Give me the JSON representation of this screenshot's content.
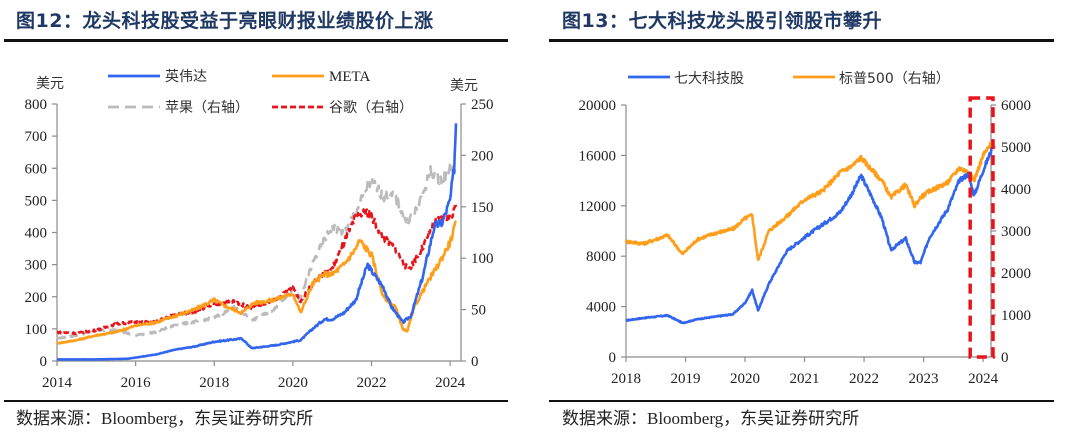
{
  "page": {
    "source_label": "数据来源：Bloomberg，东吴证券研究所"
  },
  "chart_data": [
    {
      "type": "line",
      "title": "图12：龙头科技股受益于亮眼财报业绩股价上涨",
      "source": "数据来源：Bloomberg，东吴证券研究所",
      "y_left_unit": "美元",
      "y_right_unit": "美元",
      "ylim_left": [
        0,
        800
      ],
      "ylim_right": [
        0,
        250
      ],
      "yticks_left": [
        "0",
        "100",
        "200",
        "300",
        "400",
        "500",
        "600",
        "700",
        "800"
      ],
      "yticks_right": [
        "0",
        "50",
        "100",
        "150",
        "200",
        "250"
      ],
      "xlim": [
        2014,
        2024.2
      ],
      "xticks": [
        "2014",
        "2016",
        "2018",
        "2020",
        "2022",
        "2024"
      ],
      "grid": false,
      "legend_position": "top",
      "legend": [
        "英伟达",
        "META",
        "苹果（右轴）",
        "谷歌（右轴）"
      ],
      "series": [
        {
          "name": "英伟达",
          "axis": "left",
          "color": "#3366ee",
          "dash": "solid",
          "x": [
            2014,
            2015,
            2015.8,
            2016.5,
            2017,
            2017.5,
            2018,
            2018.7,
            2018.95,
            2019.3,
            2019.6,
            2020,
            2020.2,
            2020.5,
            2020.8,
            2021,
            2021.3,
            2021.6,
            2021.9,
            2022.0,
            2022.3,
            2022.5,
            2022.8,
            2023.0,
            2023.3,
            2023.6,
            2023.8,
            2024.0,
            2024.1,
            2024.15
          ],
          "y": [
            5,
            5,
            7,
            20,
            35,
            45,
            60,
            70,
            40,
            45,
            50,
            60,
            65,
            100,
            130,
            130,
            150,
            190,
            300,
            280,
            230,
            170,
            120,
            140,
            260,
            420,
            430,
            500,
            600,
            740
          ]
        },
        {
          "name": "META",
          "axis": "left",
          "color": "#ff9e1b",
          "dash": "solid",
          "x": [
            2014,
            2014.5,
            2015,
            2015.5,
            2016,
            2016.5,
            2017,
            2017.5,
            2018,
            2018.3,
            2018.7,
            2019,
            2019.5,
            2020,
            2020.2,
            2020.5,
            2020.8,
            2021,
            2021.3,
            2021.6,
            2021.7,
            2022.0,
            2022.3,
            2022.6,
            2022.8,
            2022.9,
            2023.1,
            2023.4,
            2023.7,
            2024.0,
            2024.15
          ],
          "y": [
            55,
            65,
            80,
            90,
            110,
            120,
            140,
            160,
            190,
            170,
            150,
            180,
            190,
            210,
            150,
            240,
            270,
            270,
            300,
            350,
            375,
            330,
            200,
            170,
            100,
            90,
            170,
            240,
            300,
            370,
            430
          ]
        },
        {
          "name": "苹果（右轴）",
          "axis": "right",
          "color": "#bbbbbb",
          "dash": "dashed",
          "x": [
            2014,
            2014.5,
            2015,
            2015.5,
            2016,
            2016.5,
            2017,
            2017.5,
            2018,
            2018.5,
            2019,
            2019.5,
            2020,
            2020.2,
            2020.5,
            2020.8,
            2021,
            2021.3,
            2021.6,
            2021.9,
            2022.0,
            2022.3,
            2022.6,
            2022.9,
            2023.2,
            2023.5,
            2023.8,
            2024.0,
            2024.15
          ],
          "y": [
            22,
            25,
            30,
            30,
            25,
            28,
            35,
            38,
            42,
            52,
            40,
            50,
            70,
            62,
            95,
            118,
            130,
            125,
            145,
            170,
            175,
            160,
            160,
            135,
            150,
            185,
            175,
            190,
            185
          ]
        },
        {
          "name": "谷歌（右轴）",
          "axis": "right",
          "color": "#e8141b",
          "dash": "dashed",
          "x": [
            2014,
            2014.5,
            2015,
            2015.5,
            2016,
            2016.5,
            2017,
            2017.5,
            2018,
            2018.5,
            2018.9,
            2019.3,
            2019.6,
            2020,
            2020.2,
            2020.5,
            2020.8,
            2021,
            2021.3,
            2021.6,
            2021.9,
            2022.0,
            2022.3,
            2022.6,
            2022.9,
            2023.0,
            2023.3,
            2023.6,
            2023.9,
            2024.0,
            2024.15
          ],
          "y": [
            28,
            27,
            30,
            36,
            38,
            38,
            45,
            48,
            55,
            58,
            52,
            56,
            60,
            72,
            58,
            75,
            85,
            90,
            115,
            140,
            145,
            140,
            120,
            110,
            90,
            92,
            110,
            135,
            140,
            140,
            150
          ]
        }
      ]
    },
    {
      "type": "line",
      "title": "图13：七大科技龙头股引领股市攀升",
      "source": "数据来源：Bloomberg，东吴证券研究所",
      "ylim_left": [
        0,
        20000
      ],
      "ylim_right": [
        0,
        6000
      ],
      "yticks_left": [
        "0",
        "4000",
        "8000",
        "12000",
        "16000",
        "20000"
      ],
      "yticks_right": [
        "0",
        "1000",
        "2000",
        "3000",
        "4000",
        "5000",
        "6000"
      ],
      "xlim": [
        2018,
        2024.15
      ],
      "xticks": [
        "2018",
        "2019",
        "2020",
        "2021",
        "2022",
        "2023",
        "2024"
      ],
      "grid": false,
      "legend_position": "top",
      "legend": [
        "七大科技股",
        "标普500（右轴）"
      ],
      "highlight": {
        "label": "2024年区间高亮",
        "x_range": [
          2023.8,
          2024.15
        ],
        "color": "#e8141b",
        "style": "dashed-box"
      },
      "series": [
        {
          "name": "七大科技股",
          "axis": "left",
          "color": "#3366ee",
          "x": [
            2018,
            2018.3,
            2018.7,
            2018.95,
            2019.2,
            2019.5,
            2019.8,
            2020.0,
            2020.12,
            2020.22,
            2020.4,
            2020.7,
            2021.0,
            2021.3,
            2021.6,
            2021.8,
            2021.95,
            2022.1,
            2022.3,
            2022.45,
            2022.7,
            2022.85,
            2022.95,
            2023.1,
            2023.4,
            2023.6,
            2023.75,
            2023.85,
            2024.0,
            2024.15
          ],
          "y": [
            2900,
            3100,
            3300,
            2700,
            3000,
            3200,
            3400,
            4300,
            5300,
            3700,
            5800,
            8400,
            9500,
            10500,
            11500,
            13000,
            14400,
            13000,
            11000,
            8500,
            9400,
            7500,
            7500,
            9500,
            11700,
            14000,
            14500,
            12800,
            14800,
            16500
          ]
        },
        {
          "name": "标普500（右轴）",
          "axis": "right",
          "color": "#ff9e1b",
          "x": [
            2018,
            2018.3,
            2018.7,
            2018.95,
            2019.2,
            2019.5,
            2019.8,
            2020.0,
            2020.12,
            2020.22,
            2020.4,
            2020.7,
            2021.0,
            2021.3,
            2021.6,
            2021.8,
            2021.95,
            2022.1,
            2022.3,
            2022.45,
            2022.7,
            2022.85,
            2022.95,
            2023.1,
            2023.4,
            2023.6,
            2023.75,
            2023.85,
            2024.0,
            2024.15
          ],
          "y": [
            2750,
            2700,
            2900,
            2450,
            2800,
            2950,
            3050,
            3300,
            3380,
            2300,
            3000,
            3350,
            3750,
            3950,
            4400,
            4550,
            4750,
            4500,
            4200,
            3800,
            4100,
            3600,
            3800,
            3950,
            4150,
            4500,
            4400,
            4200,
            4800,
            5100
          ]
        }
      ]
    }
  ]
}
